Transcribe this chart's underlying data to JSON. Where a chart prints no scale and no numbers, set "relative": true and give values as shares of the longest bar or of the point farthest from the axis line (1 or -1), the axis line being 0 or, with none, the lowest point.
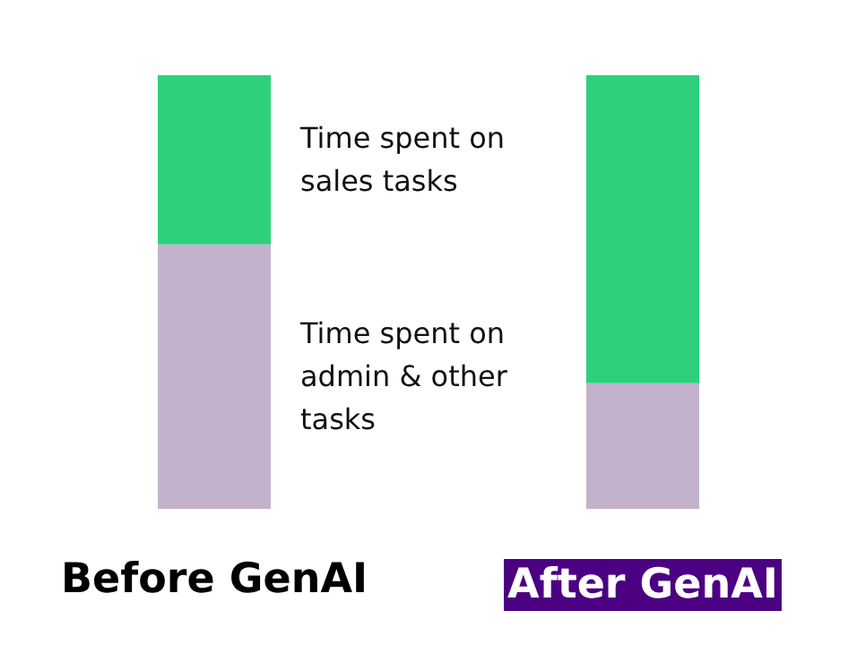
{
  "chart_data": {
    "type": "bar",
    "stacked": true,
    "relative": true,
    "categories": [
      "Before GenAI",
      "After GenAI"
    ],
    "series": [
      {
        "name": "Time spent on admin & other tasks",
        "color": "#c3b2cc",
        "values": [
          0.61,
          0.29
        ]
      },
      {
        "name": "Time spent on sales tasks",
        "color": "#2dd17c",
        "values": [
          0.39,
          0.71
        ]
      }
    ],
    "legend": false,
    "grid": false
  }
}
